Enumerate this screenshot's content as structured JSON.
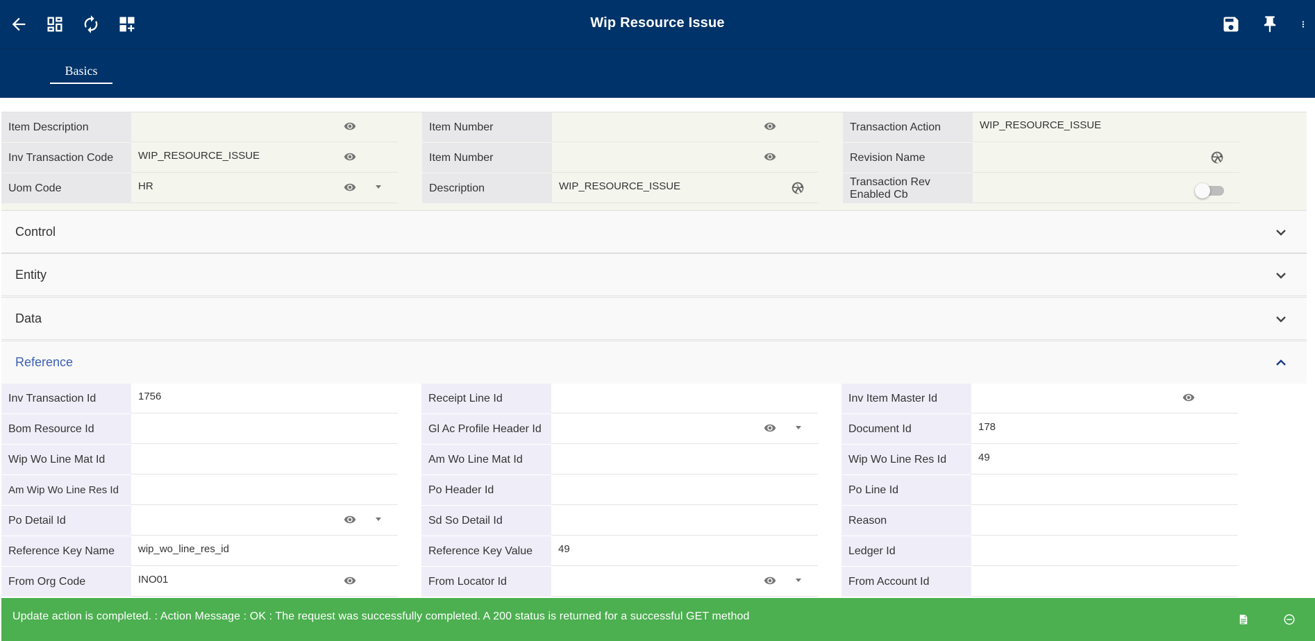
{
  "header": {
    "title": "Wip Resource Issue",
    "left_icons": [
      "back-arrow-icon",
      "dashboard-icon",
      "refresh-icon",
      "add-widget-icon"
    ],
    "right_icons": [
      "save-icon",
      "pin-icon",
      "more-vert-icon"
    ]
  },
  "tabs": [
    {
      "label": "Basics",
      "active": true
    }
  ],
  "basics": {
    "col1": [
      {
        "label": "Item Description",
        "value": ""
      },
      {
        "label": "Inv Transaction Code",
        "value": "WIP_RESOURCE_ISSUE"
      },
      {
        "label": "Uom Code",
        "value": "HR"
      }
    ],
    "col2": [
      {
        "label": "Item Number",
        "value": ""
      },
      {
        "label": "Item Number",
        "value": ""
      },
      {
        "label": "Description",
        "value": "WIP_RESOURCE_ISSUE"
      }
    ],
    "col3": [
      {
        "label": "Transaction Action",
        "value": "WIP_RESOURCE_ISSUE"
      },
      {
        "label": "Revision Name",
        "value": ""
      },
      {
        "label": "Transaction Rev Enabled Cb",
        "value": "",
        "toggle": false
      }
    ]
  },
  "sections": [
    {
      "title": "Control",
      "expanded": false
    },
    {
      "title": "Entity",
      "expanded": false
    },
    {
      "title": "Data",
      "expanded": false
    },
    {
      "title": "Reference",
      "expanded": true
    }
  ],
  "reference": {
    "col1": [
      {
        "label": "Inv Transaction Id",
        "value": "1756"
      },
      {
        "label": "Bom Resource Id",
        "value": ""
      },
      {
        "label": "Wip Wo Line Mat Id",
        "value": ""
      },
      {
        "label": "Am Wip Wo Line Res Id",
        "value": ""
      },
      {
        "label": "Po Detail Id",
        "value": ""
      },
      {
        "label": "Reference Key Name",
        "value": "wip_wo_line_res_id"
      },
      {
        "label": "From Org Code",
        "value": "INO01"
      }
    ],
    "col2": [
      {
        "label": "Receipt Line Id",
        "value": ""
      },
      {
        "label": "Gl Ac Profile Header Id",
        "value": ""
      },
      {
        "label": "Am Wo Line Mat Id",
        "value": ""
      },
      {
        "label": "Po Header Id",
        "value": ""
      },
      {
        "label": "Sd So Detail Id",
        "value": ""
      },
      {
        "label": "Reference Key Value",
        "value": "49"
      },
      {
        "label": "From Locator Id",
        "value": ""
      }
    ],
    "col3": [
      {
        "label": "Inv Item Master Id",
        "value": ""
      },
      {
        "label": "Document Id",
        "value": "178"
      },
      {
        "label": "Wip Wo Line Res Id",
        "value": "49"
      },
      {
        "label": "Po Line Id",
        "value": ""
      },
      {
        "label": "Reason",
        "value": ""
      },
      {
        "label": "Ledger Id",
        "value": ""
      },
      {
        "label": "From Account Id",
        "value": ""
      }
    ]
  },
  "status": {
    "message": "Update action is completed.  : Action Message : OK : The request was successfully completed. A 200 status is returned for a successful GET method",
    "color": "#4caf50",
    "icons": [
      "note-icon",
      "dismiss-icon"
    ]
  },
  "colors": {
    "appbar": "#003369",
    "accent": "#3c5fb5"
  }
}
